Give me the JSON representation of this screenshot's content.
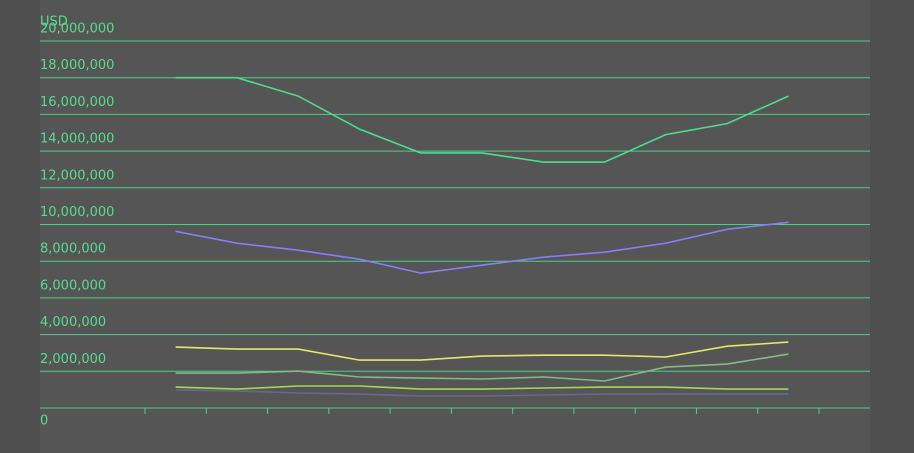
{
  "chart_data": {
    "type": "line",
    "y_label": "USD",
    "categories": [
      null,
      null,
      null,
      null,
      null,
      null,
      null,
      null,
      null,
      null,
      null
    ],
    "series": [
      {
        "color": "#4cdc8c",
        "values": [
          18000000,
          18000000,
          17000000,
          15200000,
          13900000,
          13900000,
          13400000,
          13400000,
          14900000,
          15500000,
          17000000
        ]
      },
      {
        "color": "#8a7cf5",
        "values": [
          9630000,
          8980000,
          8600000,
          8110000,
          7350000,
          7780000,
          8220000,
          8490000,
          8980000,
          9740000,
          10120000
        ]
      },
      {
        "color": "#e6e66e",
        "values": [
          3320000,
          3210000,
          3210000,
          2610000,
          2610000,
          2830000,
          2880000,
          2880000,
          2780000,
          3370000,
          3590000
        ]
      },
      {
        "color": "#88b888",
        "values": [
          1900000,
          1900000,
          2010000,
          1690000,
          1630000,
          1580000,
          1690000,
          1470000,
          2230000,
          2390000,
          2940000
        ]
      },
      {
        "color": "#a6d655",
        "values": [
          1140000,
          1030000,
          1200000,
          1200000,
          1030000,
          1030000,
          1090000,
          1140000,
          1140000,
          1030000,
          1030000
        ]
      },
      {
        "color": "#666a88",
        "values": [
          980000,
          930000,
          820000,
          760000,
          650000,
          650000,
          710000,
          760000,
          760000,
          760000,
          760000
        ]
      }
    ],
    "ylim": [
      0,
      20000000
    ],
    "yticks": [
      0,
      {
        "value": 2000000,
        "label": "2,000,000"
      },
      {
        "value": 4000000,
        "label": "4,000,000"
      },
      {
        "value": 6000000,
        "label": "6,000,000"
      },
      {
        "value": 8000000,
        "label": "8,000,000"
      },
      {
        "value": 10000000,
        "label": "10,000,000"
      },
      {
        "value": 12000000,
        "label": "12,000,000"
      },
      {
        "value": 14000000,
        "label": "14,000,000"
      },
      {
        "value": 16000000,
        "label": "16,000,000"
      },
      {
        "value": 18000000,
        "label": "18,000,000"
      },
      {
        "value": 20000000,
        "label": "20,000,000"
      }
    ],
    "grid": true,
    "grid_color": "#4bd08a"
  }
}
